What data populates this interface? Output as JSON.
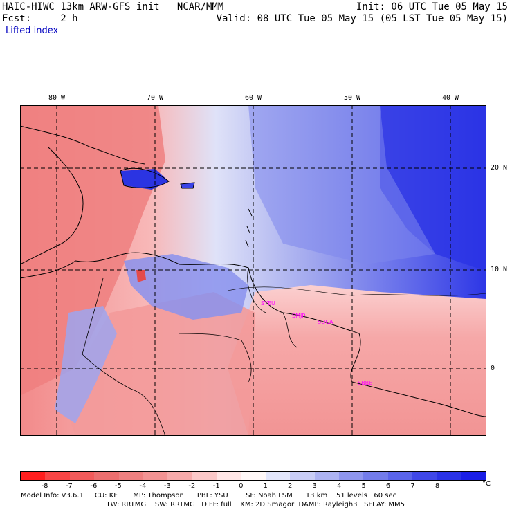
{
  "header": {
    "title": "HAIC-HIWC 13km ARW-GFS init   NCAR/MMM",
    "fcst": "Fcst:     2 h",
    "field": "Lifted index",
    "init": "Init: 06 UTC Tue 05 May 15",
    "valid": "Valid: 08 UTC Tue 05 May 15 (05 LST Tue 05 May 15)"
  },
  "map": {
    "lon_labels": [
      "80 W",
      "70 W",
      "60 W",
      "50 W",
      "40 W"
    ],
    "lat_labels": [
      "20 N",
      "10 N",
      "0"
    ],
    "stations": [
      "SYEU",
      "SMJP",
      "SOCA",
      "SBBE"
    ]
  },
  "colorbar": {
    "ticks": [
      "-8",
      "-7",
      "-6",
      "-5",
      "-4",
      "-3",
      "-2",
      "-1",
      "0",
      "1",
      "2",
      "3",
      "4",
      "5",
      "6",
      "7",
      "8"
    ],
    "unit": "°C",
    "colors": [
      "#ff1e1e",
      "#f84545",
      "#f25b5b",
      "#ec6f6f",
      "#ee8080",
      "#f29393",
      "#f6aaaa",
      "#fbc8c8",
      "#ffe6e6",
      "#fff8f8",
      "#e3e6fb",
      "#c9cdf6",
      "#adb3f2",
      "#8f96ee",
      "#737cea",
      "#5a64ea",
      "#3f47e8",
      "#2a32e6",
      "#1a1ee6"
    ]
  },
  "footer": {
    "line1": "Model Info: V3.6.1     CU: KF       MP: Thompson      PBL: YSU        SF: Noah LSM      13 km    51 levels   60 sec",
    "line2": "LW: RRTMG    SW: RRTMG   DIFF: full    KM: 2D Smagor  DAMP: Rayleigh3   SFLAY: MM5"
  }
}
